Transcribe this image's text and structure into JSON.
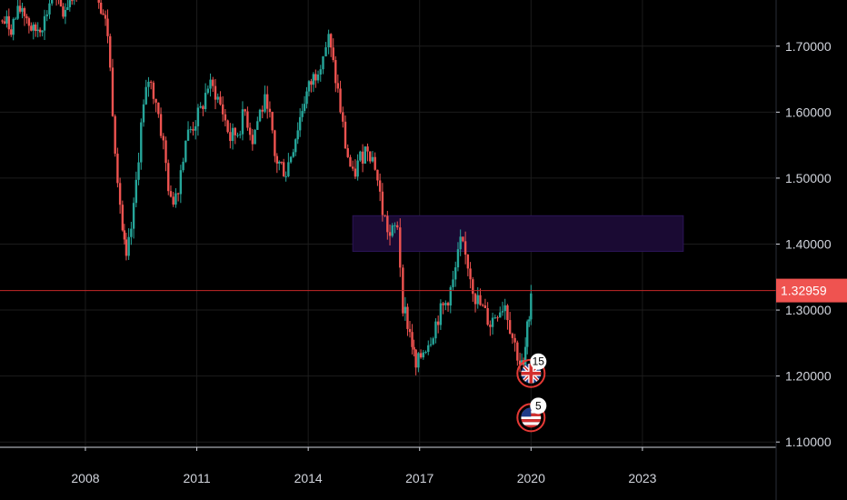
{
  "chart_data": {
    "type": "candlestick",
    "title": "",
    "xlabel": "",
    "ylabel": "",
    "xlim": [
      2005.7,
      2026.6
    ],
    "ylim": [
      1.092,
      1.77
    ],
    "x_ticks": [
      {
        "value": 2008,
        "label": "2008"
      },
      {
        "value": 2011,
        "label": "2011"
      },
      {
        "value": 2014,
        "label": "2014"
      },
      {
        "value": 2017,
        "label": "2017"
      },
      {
        "value": 2020,
        "label": "2020"
      },
      {
        "value": 2023,
        "label": "2023"
      }
    ],
    "y_ticks": [
      {
        "value": 1.7,
        "label": "1.70000"
      },
      {
        "value": 1.6,
        "label": "1.60000"
      },
      {
        "value": 1.5,
        "label": "1.50000"
      },
      {
        "value": 1.4,
        "label": "1.40000"
      },
      {
        "value": 1.3,
        "label": "1.30000"
      },
      {
        "value": 1.2,
        "label": "1.20000"
      },
      {
        "value": 1.1,
        "label": "1.10000"
      }
    ],
    "grid": true,
    "colors": {
      "up": "#26a69a",
      "down": "#ef5350",
      "zone_fill": "#1a0a33",
      "zone_edge": "#2b1457",
      "price_line": "#c62828",
      "price_badge": "#ef5350",
      "grid": "#1c1c1c",
      "axis_text": "#d1d4dc"
    },
    "price_path": [
      [
        2005.7,
        1.74
      ],
      [
        2006.0,
        1.73
      ],
      [
        2006.3,
        1.76
      ],
      [
        2006.6,
        1.72
      ],
      [
        2006.9,
        1.74
      ],
      [
        2007.1,
        1.78
      ],
      [
        2007.4,
        1.75
      ],
      [
        2007.7,
        1.79
      ],
      [
        2008.0,
        1.8
      ],
      [
        2008.3,
        1.79
      ],
      [
        2008.6,
        1.72
      ],
      [
        2008.8,
        1.55
      ],
      [
        2009.0,
        1.42
      ],
      [
        2009.1,
        1.37
      ],
      [
        2009.3,
        1.45
      ],
      [
        2009.5,
        1.58
      ],
      [
        2009.7,
        1.65
      ],
      [
        2009.9,
        1.62
      ],
      [
        2010.1,
        1.55
      ],
      [
        2010.3,
        1.46
      ],
      [
        2010.5,
        1.49
      ],
      [
        2010.7,
        1.56
      ],
      [
        2010.9,
        1.58
      ],
      [
        2011.1,
        1.6
      ],
      [
        2011.3,
        1.64
      ],
      [
        2011.5,
        1.63
      ],
      [
        2011.7,
        1.6
      ],
      [
        2011.9,
        1.56
      ],
      [
        2012.1,
        1.57
      ],
      [
        2012.3,
        1.6
      ],
      [
        2012.5,
        1.56
      ],
      [
        2012.7,
        1.6
      ],
      [
        2012.9,
        1.62
      ],
      [
        2013.1,
        1.53
      ],
      [
        2013.4,
        1.51
      ],
      [
        2013.6,
        1.55
      ],
      [
        2013.9,
        1.62
      ],
      [
        2014.2,
        1.66
      ],
      [
        2014.4,
        1.69
      ],
      [
        2014.55,
        1.71
      ],
      [
        2014.8,
        1.63
      ],
      [
        2015.0,
        1.55
      ],
      [
        2015.2,
        1.5
      ],
      [
        2015.4,
        1.53
      ],
      [
        2015.6,
        1.55
      ],
      [
        2015.8,
        1.52
      ],
      [
        2016.0,
        1.45
      ],
      [
        2016.2,
        1.41
      ],
      [
        2016.4,
        1.43
      ],
      [
        2016.55,
        1.31
      ],
      [
        2016.8,
        1.25
      ],
      [
        2016.9,
        1.21
      ],
      [
        2017.1,
        1.24
      ],
      [
        2017.3,
        1.26
      ],
      [
        2017.5,
        1.29
      ],
      [
        2017.7,
        1.31
      ],
      [
        2017.9,
        1.34
      ],
      [
        2018.1,
        1.4
      ],
      [
        2018.3,
        1.37
      ],
      [
        2018.5,
        1.32
      ],
      [
        2018.7,
        1.3
      ],
      [
        2018.9,
        1.28
      ],
      [
        2019.1,
        1.3
      ],
      [
        2019.3,
        1.31
      ],
      [
        2019.5,
        1.26
      ],
      [
        2019.7,
        1.22
      ],
      [
        2019.8,
        1.21
      ],
      [
        2019.95,
        1.3
      ],
      [
        2020.0,
        1.33
      ]
    ],
    "supply_zone": {
      "x_start": 2015.2,
      "x_end": 2024.1,
      "y_low": 1.389,
      "y_high": 1.443
    },
    "current_price": {
      "value": 1.32959,
      "label": "1.32959"
    },
    "events": [
      {
        "x": 2020.0,
        "y": 1.204,
        "flag": "GB",
        "icon": "uk-flag-icon",
        "count": "15"
      },
      {
        "x": 2020.0,
        "y": 1.137,
        "flag": "US",
        "icon": "us-flag-icon",
        "count": "5"
      }
    ]
  }
}
